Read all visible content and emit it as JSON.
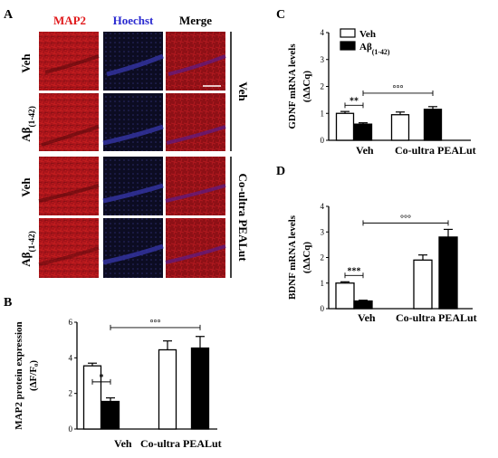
{
  "panel_letters": {
    "a": "A",
    "b": "B",
    "c": "C",
    "d": "D"
  },
  "microscopy": {
    "column_headers": [
      "MAP2",
      "Hoechst",
      "Merge"
    ],
    "header_colors": [
      "#e0191b",
      "#2a2ad0",
      "#000000"
    ],
    "row_labels": [
      "Veh",
      "Aβ(1-42)",
      "Veh",
      "Aβ(1-42)"
    ],
    "group_labels": [
      "Veh",
      "Co-ultra PEALut"
    ],
    "scale_bar_color": "#ffffff",
    "stain_colors": {
      "map2": "#b01414",
      "hoechst": "#141430",
      "merge": "#9c1218"
    }
  },
  "chart_data": [
    {
      "id": "B",
      "type": "bar",
      "ylabel": "MAP2 protein expression",
      "ylabel2": "(ΔF/F₀)",
      "ylim": [
        0,
        6
      ],
      "yticks": [
        "0",
        "2",
        "4",
        "6"
      ],
      "group_labels": [
        "Veh",
        "Co-ultra PEALut"
      ],
      "series": [
        {
          "values": [
            3.55,
            4.45
          ],
          "errors": [
            0.15,
            0.5
          ],
          "fill": "#ffffff"
        },
        {
          "values": [
            1.55,
            4.55
          ],
          "errors": [
            0.2,
            0.65
          ],
          "fill": "#000000"
        }
      ],
      "annotations": [
        {
          "text": "*",
          "from": 0,
          "to": 1,
          "y": 2.65
        },
        {
          "text": "°°°",
          "from": 1,
          "to": 3,
          "y": 5.7
        }
      ]
    },
    {
      "id": "C",
      "type": "bar",
      "ylabel": "GDNF mRNA levels",
      "ylabel2": "(ΔΔCq)",
      "ylim": [
        0,
        4
      ],
      "yticks": [
        "0",
        "1",
        "2",
        "3",
        "4"
      ],
      "group_labels": [
        "Veh",
        "Co-ultra PEALut"
      ],
      "legend": [
        "Veh",
        "Aβ(1-42)"
      ],
      "series": [
        {
          "name": "Veh",
          "values": [
            1.0,
            0.95
          ],
          "errors": [
            0.07,
            0.1
          ],
          "fill": "#ffffff"
        },
        {
          "name": "Aβ(1-42)",
          "values": [
            0.6,
            1.15
          ],
          "errors": [
            0.05,
            0.1
          ],
          "fill": "#000000"
        }
      ],
      "annotations": [
        {
          "text": "**",
          "from": 0,
          "to": 1,
          "y": 1.3
        },
        {
          "text": "°°°",
          "from": 1,
          "to": 3,
          "y": 1.75
        }
      ]
    },
    {
      "id": "D",
      "type": "bar",
      "ylabel": "BDNF mRNA levels",
      "ylabel2": "(ΔΔCq)",
      "ylim": [
        0,
        4
      ],
      "yticks": [
        "0",
        "1",
        "2",
        "3",
        "4"
      ],
      "group_labels": [
        "Veh",
        "Co-ultra PEALut"
      ],
      "series": [
        {
          "values": [
            1.0,
            1.9
          ],
          "errors": [
            0.05,
            0.2
          ],
          "fill": "#ffffff"
        },
        {
          "values": [
            0.3,
            2.8
          ],
          "errors": [
            0.03,
            0.3
          ],
          "fill": "#000000"
        }
      ],
      "annotations": [
        {
          "text": "***",
          "from": 0,
          "to": 1,
          "y": 1.3
        },
        {
          "text": "°°°",
          "from": 1,
          "to": 3,
          "y": 3.35
        }
      ]
    }
  ]
}
